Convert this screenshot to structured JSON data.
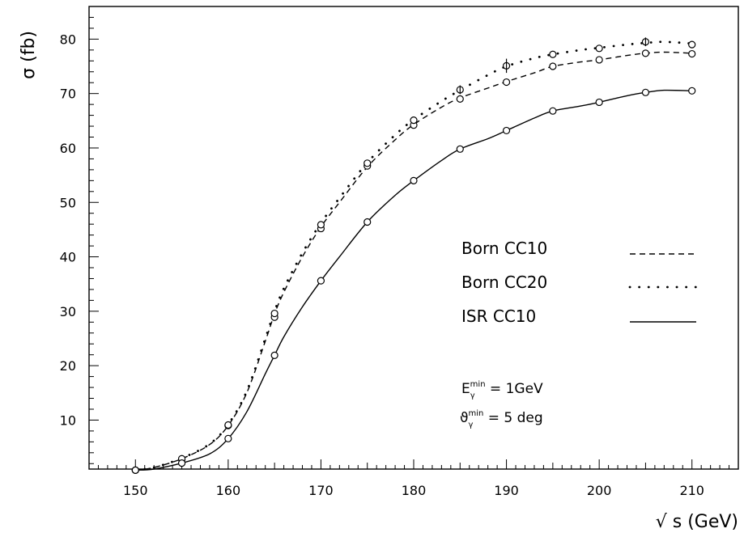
{
  "chart_data": {
    "type": "line",
    "title": "",
    "xlabel": "√ s (GeV)",
    "ylabel": "σ (fb)",
    "xlim": [
      145,
      215
    ],
    "ylim": [
      1,
      86
    ],
    "x_ticks": [
      150,
      160,
      170,
      180,
      190,
      200,
      210
    ],
    "y_ticks": [
      10,
      20,
      30,
      40,
      50,
      60,
      70,
      80
    ],
    "grid": false,
    "legend_position": "right-middle",
    "series": [
      {
        "name": "Born CC10",
        "style": "dashed",
        "curve": {
          "x": [
            150,
            152,
            155,
            158,
            160,
            162,
            164,
            165,
            166,
            168,
            170,
            172,
            175,
            178,
            180,
            183,
            185,
            188,
            190,
            193,
            195,
            198,
            200,
            203,
            205,
            207,
            210
          ],
          "y": [
            0.8,
            1.3,
            2.9,
            5.5,
            9.0,
            15.0,
            24.5,
            29.5,
            33.5,
            40.0,
            45.5,
            50.0,
            56.5,
            61.5,
            64.3,
            67.5,
            69.2,
            71.0,
            72.2,
            73.8,
            75.0,
            75.8,
            76.2,
            77.0,
            77.4,
            77.6,
            77.4
          ]
        },
        "points": {
          "x": [
            150,
            155,
            160,
            165,
            170,
            175,
            180,
            185,
            190,
            195,
            200,
            205,
            210
          ],
          "y": [
            0.8,
            2.8,
            9.0,
            28.9,
            45.2,
            56.7,
            64.2,
            69.0,
            72.1,
            75.0,
            76.2,
            77.4,
            77.3
          ]
        }
      },
      {
        "name": "Born CC20",
        "style": "dotted",
        "curve": {
          "x": [
            150,
            152,
            155,
            158,
            160,
            162,
            164,
            165,
            166,
            168,
            170,
            172,
            175,
            178,
            180,
            183,
            185,
            188,
            190,
            193,
            195,
            198,
            200,
            203,
            205,
            207,
            210
          ],
          "y": [
            0.8,
            1.3,
            3.0,
            5.6,
            9.2,
            15.3,
            25.0,
            30.0,
            34.2,
            40.7,
            46.2,
            50.8,
            57.3,
            62.4,
            65.2,
            68.6,
            70.6,
            73.4,
            75.0,
            76.5,
            77.2,
            78.0,
            78.4,
            79.0,
            79.3,
            79.5,
            79.2
          ]
        },
        "points": {
          "x": [
            150,
            155,
            160,
            165,
            170,
            175,
            180,
            185,
            190,
            195,
            200,
            205,
            210
          ],
          "y": [
            0.8,
            2.9,
            9.1,
            29.6,
            45.9,
            57.2,
            65.1,
            70.7,
            75.1,
            77.2,
            78.3,
            79.5,
            79.0
          ]
        }
      },
      {
        "name": "ISR CC10",
        "style": "solid",
        "curve": {
          "x": [
            150,
            152,
            155,
            158,
            160,
            162,
            164,
            165,
            166,
            168,
            170,
            172,
            175,
            178,
            180,
            183,
            185,
            188,
            190,
            193,
            195,
            198,
            200,
            203,
            205,
            207,
            210
          ],
          "y": [
            0.8,
            1.0,
            2.1,
            3.8,
            6.6,
            11.5,
            18.5,
            21.9,
            25.3,
            30.8,
            35.6,
            40.0,
            46.4,
            51.3,
            54.0,
            57.7,
            59.8,
            61.7,
            63.2,
            65.5,
            66.8,
            67.7,
            68.4,
            69.6,
            70.2,
            70.6,
            70.5
          ]
        },
        "points": {
          "x": [
            150,
            155,
            160,
            165,
            170,
            175,
            180,
            185,
            190,
            195,
            200,
            205,
            210
          ],
          "y": [
            0.8,
            2.1,
            6.6,
            21.9,
            35.6,
            46.4,
            54.0,
            59.8,
            63.2,
            66.8,
            68.4,
            70.2,
            70.5
          ]
        }
      }
    ],
    "error_bars": [
      {
        "x": 185,
        "y": 70.7,
        "err": 0.8
      },
      {
        "x": 190,
        "y": 75.1,
        "err": 1.3
      },
      {
        "x": 205,
        "y": 79.5,
        "err": 0.8
      }
    ],
    "annotations": {
      "energy_cut_prefix": "E",
      "energy_cut_sub": "γ",
      "energy_cut_sup": "min",
      "energy_cut_value": " = 1GeV",
      "angle_cut_prefix": "ϑ",
      "angle_cut_sub": "γ",
      "angle_cut_sup": "min",
      "angle_cut_value": " = 5 deg"
    }
  }
}
